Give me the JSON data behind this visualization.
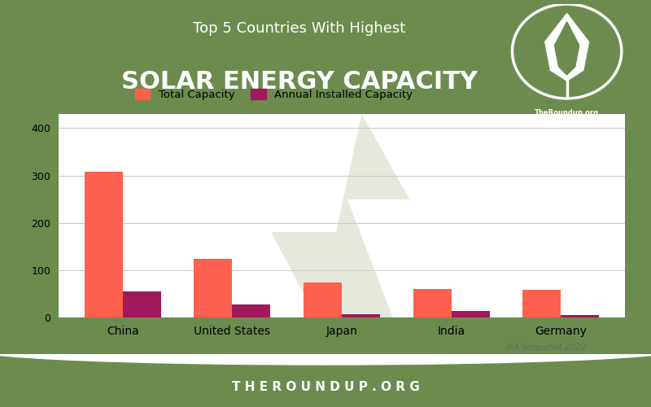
{
  "title_line1": "Top 5 Countries With Highest",
  "title_line2": "SOLAR ENERGY CAPACITY",
  "categories": [
    "China",
    "United States",
    "Japan",
    "India",
    "Germany"
  ],
  "total_capacity": [
    308,
    123,
    74,
    60,
    58
  ],
  "annual_capacity": [
    55,
    27,
    7,
    13,
    5
  ],
  "total_color": "#FF5F4E",
  "annual_color": "#A0195A",
  "header_bg_color": "#6B8C4E",
  "chart_bg_color": "#FFFFFF",
  "footer_bg_color": "#6B8C4E",
  "footer_text": "T H E R O U N D U P . O R G",
  "source_text": "IEA Snapshot 2022",
  "legend_label1": "Total Capacity",
  "legend_label2": "Annual Installed Capacity",
  "ylim": [
    0,
    430
  ],
  "yticks": [
    0,
    100,
    200,
    300,
    400
  ],
  "bar_width": 0.35,
  "title_fontsize1": 13,
  "title_fontsize2": 22,
  "site_label": "TheRoundup.org",
  "lightning_color": "#D0D8C0"
}
